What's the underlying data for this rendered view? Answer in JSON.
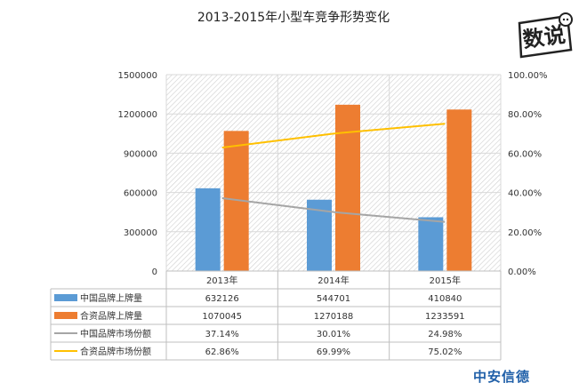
{
  "title": "2013-2015年小型车竞争形势变化",
  "brand_text": "中安信德",
  "logo_text": "数说",
  "colors": {
    "china_units": "#5b9bd5",
    "jv_units": "#ed7d31",
    "china_share": "#a5a5a5",
    "jv_share": "#ffc000",
    "brand": "#1f5fa8"
  },
  "chart_data": {
    "type": "bar",
    "title": "2013-2015年小型车竞争形势变化",
    "categories": [
      "2013年",
      "2014年",
      "2015年"
    ],
    "ylim": [
      0,
      1500000
    ],
    "yticks": [
      0,
      300000,
      600000,
      900000,
      1200000,
      1500000
    ],
    "y2lim": [
      0,
      1.0
    ],
    "y2ticks": [
      "0.00%",
      "20.00%",
      "40.00%",
      "60.00%",
      "80.00%",
      "100.00%"
    ],
    "grid": true,
    "legend": "table-below",
    "series": [
      {
        "name": "中国品牌上牌量",
        "kind": "bar",
        "axis": "left",
        "values": [
          632126,
          544701,
          410840
        ],
        "labels": [
          "632126",
          "544701",
          "410840"
        ]
      },
      {
        "name": "合资品牌上牌量",
        "kind": "bar",
        "axis": "left",
        "values": [
          1070045,
          1270188,
          1233591
        ],
        "labels": [
          "1070045",
          "1270188",
          "1233591"
        ]
      },
      {
        "name": "中国品牌市场份额",
        "kind": "line",
        "axis": "right",
        "values": [
          0.3714,
          0.3001,
          0.2498
        ],
        "labels": [
          "37.14%",
          "30.01%",
          "24.98%"
        ]
      },
      {
        "name": "合资品牌市场份额",
        "kind": "line",
        "axis": "right",
        "values": [
          0.6286,
          0.6999,
          0.7502
        ],
        "labels": [
          "62.86%",
          "69.99%",
          "75.02%"
        ]
      }
    ]
  }
}
